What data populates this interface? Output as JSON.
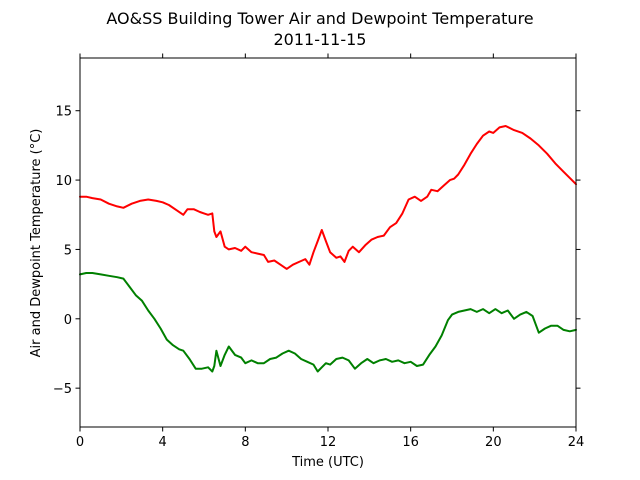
{
  "chart_data": {
    "type": "line",
    "title": "AO&SS Building Tower Air and Dewpoint Temperature",
    "subtitle": "2011-11-15",
    "xlabel": "Time (UTC)",
    "ylabel": "Air and Dewpoint Temperature (°C)",
    "xlim": [
      0,
      24
    ],
    "ylim": [
      -7.8,
      18.8
    ],
    "xticks": [
      0,
      4,
      8,
      12,
      16,
      20,
      24
    ],
    "yticks": [
      -5,
      0,
      5,
      10,
      15
    ],
    "grid": false,
    "series": [
      {
        "color": "#ff0000",
        "x": [
          0,
          0.3,
          0.6,
          1.0,
          1.4,
          1.8,
          2.1,
          2.5,
          2.9,
          3.3,
          3.7,
          4.0,
          4.3,
          4.7,
          5.0,
          5.2,
          5.5,
          5.8,
          6.0,
          6.2,
          6.4,
          6.5,
          6.6,
          6.8,
          7.0,
          7.2,
          7.5,
          7.8,
          8.0,
          8.3,
          8.6,
          8.9,
          9.1,
          9.4,
          9.7,
          10.0,
          10.3,
          10.6,
          10.9,
          11.1,
          11.3,
          11.5,
          11.7,
          11.9,
          12.1,
          12.4,
          12.6,
          12.8,
          13.0,
          13.2,
          13.5,
          13.8,
          14.1,
          14.4,
          14.7,
          15.0,
          15.3,
          15.6,
          15.9,
          16.2,
          16.5,
          16.8,
          17.0,
          17.3,
          17.6,
          17.9,
          18.1,
          18.3,
          18.6,
          18.9,
          19.2,
          19.5,
          19.8,
          20.0,
          20.3,
          20.6,
          21.0,
          21.4,
          21.8,
          22.2,
          22.6,
          23.0,
          23.4,
          23.8,
          24.0
        ],
        "values": [
          8.8,
          8.8,
          8.7,
          8.6,
          8.3,
          8.1,
          8.0,
          8.3,
          8.5,
          8.6,
          8.5,
          8.4,
          8.2,
          7.8,
          7.5,
          7.9,
          7.9,
          7.7,
          7.6,
          7.5,
          7.6,
          6.3,
          5.9,
          6.3,
          5.2,
          5.0,
          5.1,
          4.9,
          5.2,
          4.8,
          4.7,
          4.6,
          4.1,
          4.2,
          3.9,
          3.6,
          3.9,
          4.1,
          4.3,
          3.9,
          4.8,
          5.6,
          6.4,
          5.6,
          4.8,
          4.4,
          4.5,
          4.1,
          4.9,
          5.2,
          4.8,
          5.3,
          5.7,
          5.9,
          6.0,
          6.6,
          6.9,
          7.6,
          8.6,
          8.8,
          8.5,
          8.8,
          9.3,
          9.2,
          9.6,
          10.0,
          10.1,
          10.4,
          11.1,
          11.9,
          12.6,
          13.2,
          13.5,
          13.4,
          13.8,
          13.9,
          13.6,
          13.4,
          13.0,
          12.5,
          11.9,
          11.2,
          10.6,
          10.0,
          9.7
        ]
      },
      {
        "color": "#008000",
        "x": [
          0,
          0.3,
          0.6,
          1.0,
          1.4,
          1.8,
          2.1,
          2.4,
          2.7,
          3.0,
          3.3,
          3.6,
          3.9,
          4.2,
          4.5,
          4.8,
          5.0,
          5.3,
          5.6,
          5.9,
          6.2,
          6.4,
          6.5,
          6.6,
          6.8,
          7.0,
          7.2,
          7.5,
          7.8,
          8.0,
          8.3,
          8.6,
          8.9,
          9.2,
          9.5,
          9.8,
          10.1,
          10.4,
          10.7,
          11.0,
          11.3,
          11.5,
          11.7,
          11.9,
          12.1,
          12.4,
          12.7,
          13.0,
          13.3,
          13.6,
          13.9,
          14.2,
          14.5,
          14.8,
          15.1,
          15.4,
          15.7,
          16.0,
          16.3,
          16.6,
          16.9,
          17.2,
          17.5,
          17.8,
          18.0,
          18.3,
          18.6,
          18.9,
          19.2,
          19.5,
          19.8,
          20.1,
          20.4,
          20.7,
          21.0,
          21.3,
          21.6,
          21.9,
          22.2,
          22.5,
          22.8,
          23.1,
          23.4,
          23.7,
          24.0
        ],
        "values": [
          3.2,
          3.3,
          3.3,
          3.2,
          3.1,
          3.0,
          2.9,
          2.3,
          1.7,
          1.3,
          0.6,
          0.0,
          -0.7,
          -1.5,
          -1.9,
          -2.2,
          -2.3,
          -2.9,
          -3.6,
          -3.6,
          -3.5,
          -3.8,
          -3.4,
          -2.3,
          -3.4,
          -2.6,
          -2.0,
          -2.6,
          -2.8,
          -3.2,
          -3.0,
          -3.2,
          -3.2,
          -2.9,
          -2.8,
          -2.5,
          -2.3,
          -2.5,
          -2.9,
          -3.1,
          -3.3,
          -3.8,
          -3.5,
          -3.2,
          -3.3,
          -2.9,
          -2.8,
          -3.0,
          -3.6,
          -3.2,
          -2.9,
          -3.2,
          -3.0,
          -2.9,
          -3.1,
          -3.0,
          -3.2,
          -3.1,
          -3.4,
          -3.3,
          -2.6,
          -2.0,
          -1.2,
          -0.1,
          0.3,
          0.5,
          0.6,
          0.7,
          0.5,
          0.7,
          0.4,
          0.7,
          0.4,
          0.6,
          0.0,
          0.3,
          0.5,
          0.2,
          -1.0,
          -0.7,
          -0.5,
          -0.5,
          -0.8,
          -0.9,
          -0.8
        ]
      }
    ]
  }
}
